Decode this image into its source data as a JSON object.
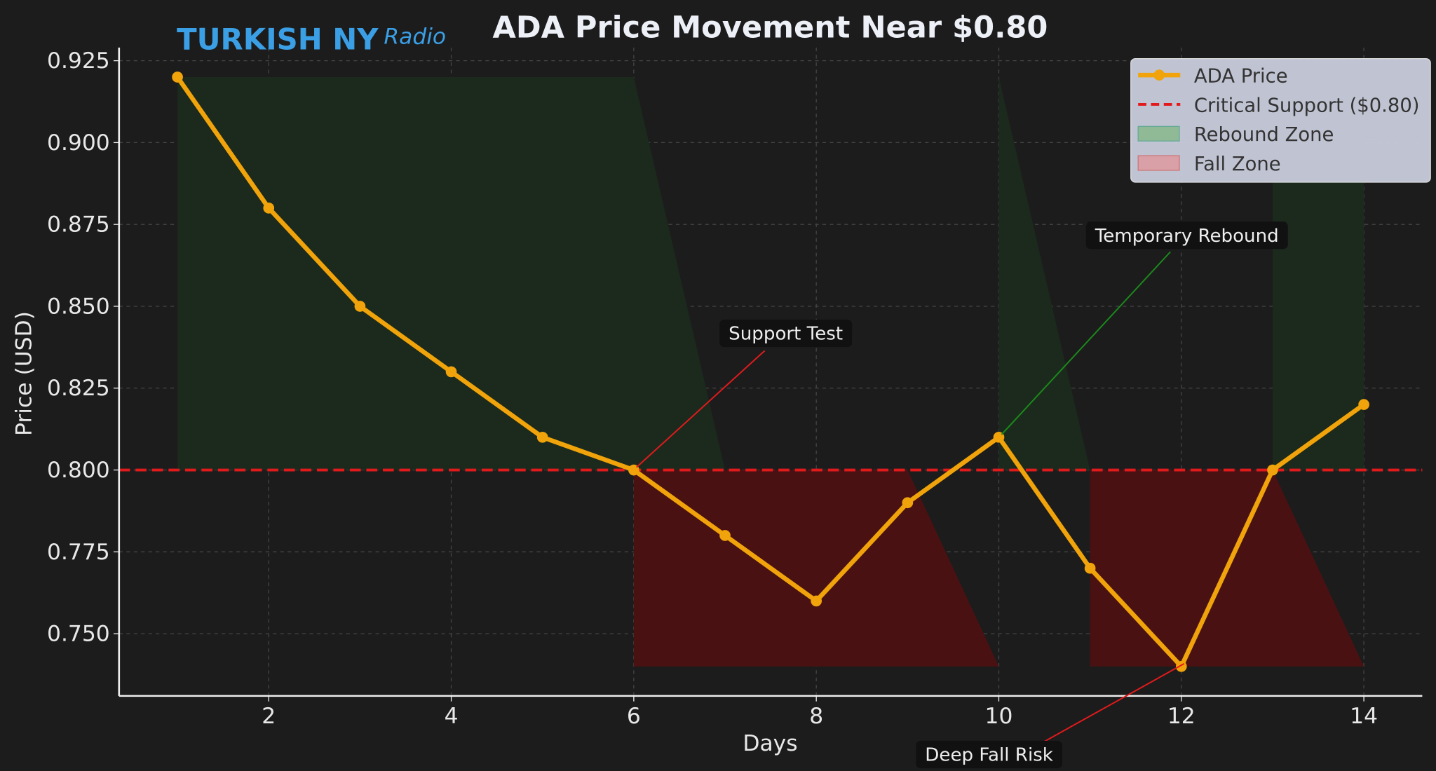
{
  "logo": {
    "text_main": "TURKISH NY",
    "text_script": "Radio"
  },
  "chart_data": {
    "type": "line",
    "title": "ADA Price Movement Near $0.80",
    "xlabel": "Days",
    "ylabel": "Price (USD)",
    "x": [
      1,
      2,
      3,
      4,
      5,
      6,
      7,
      8,
      9,
      10,
      11,
      12,
      13,
      14
    ],
    "series": [
      {
        "name": "ADA Price",
        "color": "#f0a30a",
        "values": [
          0.92,
          0.88,
          0.85,
          0.83,
          0.81,
          0.8,
          0.78,
          0.76,
          0.79,
          0.81,
          0.77,
          0.74,
          0.8,
          0.82
        ]
      }
    ],
    "hline": {
      "name": "Critical Support ($0.80)",
      "y": 0.8,
      "color": "#e31a1c",
      "style": "dashed"
    },
    "zones": [
      {
        "name": "Rebound Zone",
        "color": "#2e7d32",
        "range": [
          0.8,
          0.92
        ]
      },
      {
        "name": "Fall Zone",
        "color": "#b71c1c",
        "range": [
          0.74,
          0.8
        ]
      }
    ],
    "xlim": [
      0.36,
      14.64
    ],
    "ylim": [
      0.731,
      0.929
    ],
    "xticks": [
      2,
      4,
      6,
      8,
      10,
      12,
      14
    ],
    "yticks": [
      0.925,
      0.9,
      0.875,
      0.85,
      0.825,
      0.8,
      0.775,
      0.75
    ],
    "ytick_labels": [
      "0.925",
      "0.900",
      "0.875",
      "0.850",
      "0.825",
      "0.800",
      "0.775",
      "0.750"
    ],
    "xtick_labels": [
      "2",
      "4",
      "6",
      "8",
      "10",
      "12",
      "14"
    ],
    "grid": true,
    "legend_position": "top-right",
    "legend": [
      "ADA Price",
      "Critical Support ($0.80)",
      "Rebound Zone",
      "Fall Zone"
    ],
    "annotations": [
      {
        "text": "Support Test",
        "x": 6,
        "y": 0.8,
        "color": "#e31a1c"
      },
      {
        "text": "Temporary Rebound",
        "x": 10,
        "y": 0.81,
        "color": "#1b8a1b"
      },
      {
        "text": "Deep Fall Risk",
        "x": 12,
        "y": 0.74,
        "color": "#e31a1c"
      }
    ]
  }
}
